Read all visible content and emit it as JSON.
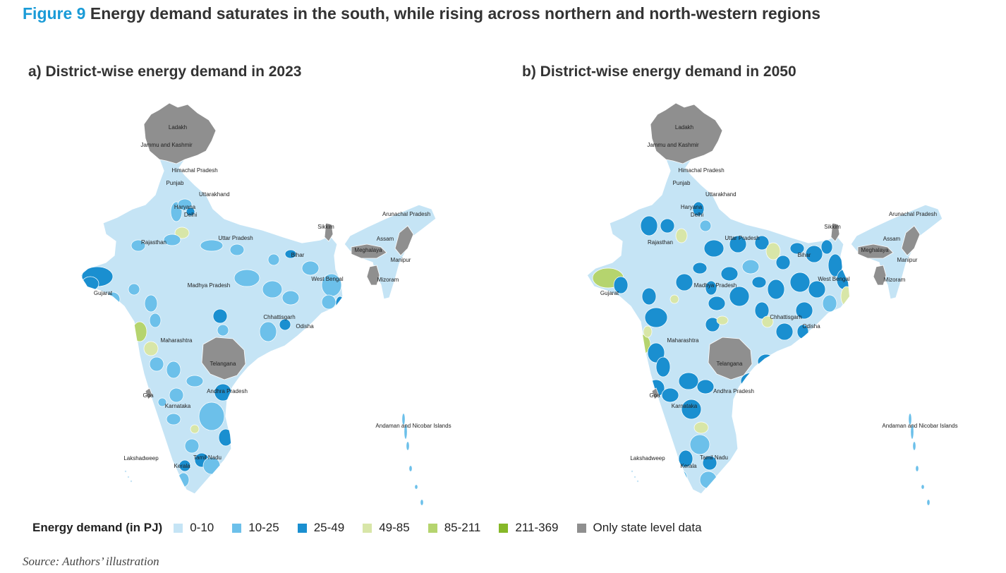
{
  "figure": {
    "number": "Figure 9",
    "title": "Energy demand saturates in the south, while rising across northern and north-western regions"
  },
  "panels": [
    {
      "title": "a) District-wise energy demand in 2023",
      "year": 2023,
      "labels": {
        "ladakh": "Ladakh",
        "jk": "Jammu and Kashmir",
        "hp": "Himachal Pradesh",
        "punjab": "Punjab",
        "uttarakhand": "Uttarakhand",
        "haryana": "Haryana",
        "delhi": "Delhi",
        "rajasthan": "Rajasthan",
        "up": "Uttar Pradesh",
        "sikkim": "Sikkim",
        "arunachal": "Arunachal Pradesh",
        "assam": "Assam",
        "meghalaya": "Meghalaya",
        "bihar": "Bihar",
        "manipur": "Manipur",
        "mizoram": "Mizoram",
        "gujarat": "Gujarat",
        "mp": "Madhya Pradesh",
        "wb": "West Bengal",
        "chhattisgarh": "Chhattisgarh",
        "odisha": "Odisha",
        "maharashtra": "Maharashtra",
        "telangana": "Telangana",
        "ap": "Andhra Pradesh",
        "goa": "Goa",
        "karnataka": "Karnataka",
        "andaman": "Andaman and Nicobar Islands",
        "lakshadweep": "Lakshadweep",
        "tn": "Tamil Nadu",
        "kerala": "Kerala"
      }
    },
    {
      "title": "b) District-wise energy demand in 2050",
      "year": 2050,
      "labels": {
        "ladakh": "Ladakh",
        "jk": "Jammu and Kashmir",
        "hp": "Himachal Pradesh",
        "punjab": "Punjab",
        "uttarakhand": "Uttarakhand",
        "haryana": "Haryana",
        "delhi": "Delhi",
        "rajasthan": "Rajasthan",
        "up": "Uttar Pradesh",
        "sikkim": "Sikkim",
        "arunachal": "Arunachal Pradesh",
        "assam": "Assam",
        "meghalaya": "Meghalaya",
        "bihar": "Bihar",
        "manipur": "Manipur",
        "mizoram": "Mizoram",
        "gujarat": "Gujarat",
        "mp": "Madhya Pradesh",
        "wb": "West Bengal",
        "chhattisgarh": "Chhattisgarh",
        "odisha": "Odisha",
        "maharashtra": "Maharashtra",
        "telangana": "Telangana",
        "ap": "Andhra Pradesh",
        "goa": "Goa",
        "karnataka": "Karnataka",
        "andaman": "Andaman and Nicobar Islands",
        "lakshadweep": "Lakshadweep",
        "tn": "Tamil Nadu",
        "kerala": "Kerala"
      }
    }
  ],
  "legend": {
    "title": "Energy demand (in PJ)",
    "items": [
      {
        "label": "0-10",
        "color": "#c5e4f5"
      },
      {
        "label": "10-25",
        "color": "#6cc0ea"
      },
      {
        "label": "25-49",
        "color": "#1a8fd0"
      },
      {
        "label": "49-85",
        "color": "#d8e6a8"
      },
      {
        "label": "85-211",
        "color": "#b5d46e"
      },
      {
        "label": "211-369",
        "color": "#86b828"
      },
      {
        "label": "Only state level data",
        "color": "#8f8f8f"
      }
    ]
  },
  "colors": {
    "title_accent": "#1a9bd7",
    "state_border": "#ffffff",
    "district_border": "#ffffff"
  },
  "source": "Source: Authors’ illustration"
}
